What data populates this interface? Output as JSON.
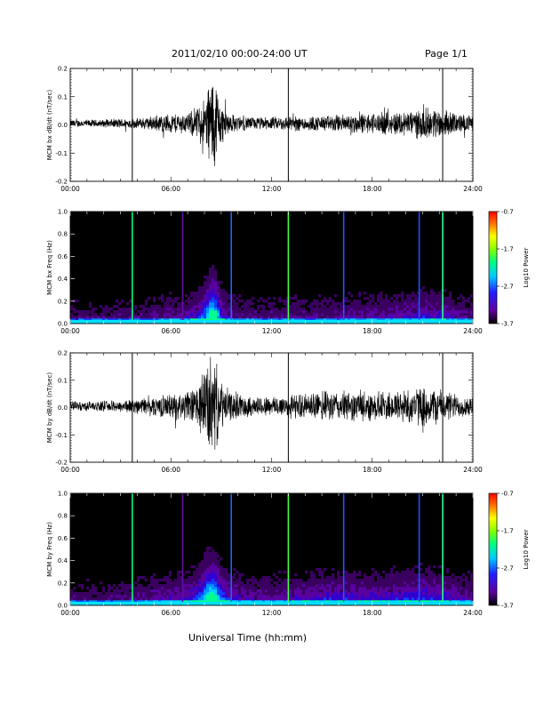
{
  "header": {
    "title": "2011/02/10  00:00-24:00 UT",
    "page": "Page 1/1",
    "xlabel": "Universal Time (hh:mm)"
  },
  "colors": {
    "trace": "#000000",
    "spectrogram_background": "#000000",
    "colorbar": [
      "#000000",
      "#6000a0",
      "#2020ff",
      "#00c8ff",
      "#00ff80",
      "#80ff00",
      "#ffff00",
      "#ff8000",
      "#ff0000"
    ]
  },
  "chart_data": [
    {
      "type": "line",
      "ylabel": "MCM bx dB/dt (nT/sec)",
      "xlim": [
        0,
        24
      ],
      "ylim": [
        -0.2,
        0.2
      ],
      "x_ticks": [
        "00:00",
        "06:00",
        "12:00",
        "18:00",
        "24:00"
      ],
      "y_ticks": [
        "-0.2",
        "-0.1",
        "0.0",
        "0.1",
        "0.2"
      ],
      "envelope": {
        "hours": [
          0,
          1,
          2,
          3,
          4,
          5,
          6,
          7,
          7.5,
          8,
          8.2,
          8.4,
          8.6,
          8.8,
          9,
          9.5,
          10,
          11,
          12,
          13,
          14,
          15,
          16,
          17,
          18,
          19,
          20,
          21,
          22,
          23,
          24
        ],
        "amplitude": [
          0.015,
          0.015,
          0.015,
          0.02,
          0.02,
          0.03,
          0.04,
          0.04,
          0.06,
          0.1,
          0.15,
          0.2,
          0.2,
          0.14,
          0.08,
          0.04,
          0.03,
          0.025,
          0.025,
          0.03,
          0.03,
          0.03,
          0.035,
          0.04,
          0.04,
          0.045,
          0.05,
          0.06,
          0.06,
          0.04,
          0.03
        ]
      },
      "spikes_hours": [
        3.7,
        13.0,
        22.2
      ]
    },
    {
      "type": "heatmap",
      "ylabel": "MCM bx Freq (Hz)",
      "xlim": [
        0,
        24
      ],
      "ylim": [
        0.0,
        1.0
      ],
      "x_ticks": [
        "00:00",
        "06:00",
        "12:00",
        "18:00",
        "24:00"
      ],
      "y_ticks": [
        "0.0",
        "0.2",
        "0.4",
        "0.6",
        "0.8",
        "1.0"
      ],
      "colorbar": {
        "label": "Log10 Power",
        "ticks": [
          "-0.7",
          "-1.7",
          "-2.7",
          "-3.7"
        ],
        "range": [
          -3.7,
          -0.7
        ]
      },
      "bright_lines_hours": [
        3.7,
        6.7,
        9.6,
        13.0,
        16.3,
        20.8,
        22.2
      ]
    },
    {
      "type": "line",
      "ylabel": "MCM by dB/dt (nT/sec)",
      "xlim": [
        0,
        24
      ],
      "ylim": [
        -0.2,
        0.2
      ],
      "x_ticks": [
        "00:00",
        "06:00",
        "12:00",
        "18:00",
        "24:00"
      ],
      "y_ticks": [
        "-0.2",
        "-0.1",
        "0.0",
        "0.1",
        "0.2"
      ],
      "envelope": {
        "hours": [
          0,
          1,
          2,
          3,
          4,
          5,
          6,
          7,
          7.5,
          8,
          8.2,
          8.4,
          8.6,
          8.8,
          9,
          9.5,
          10,
          11,
          12,
          13,
          14,
          15,
          16,
          17,
          18,
          19,
          20,
          21,
          22,
          23,
          24
        ],
        "amplitude": [
          0.02,
          0.02,
          0.02,
          0.025,
          0.03,
          0.04,
          0.05,
          0.06,
          0.08,
          0.14,
          0.2,
          0.2,
          0.2,
          0.14,
          0.1,
          0.06,
          0.05,
          0.04,
          0.04,
          0.05,
          0.05,
          0.06,
          0.06,
          0.06,
          0.06,
          0.06,
          0.07,
          0.08,
          0.07,
          0.05,
          0.04
        ]
      },
      "spikes_hours": [
        3.7,
        13.0,
        22.2
      ]
    },
    {
      "type": "heatmap",
      "ylabel": "MCM by Freq (Hz)",
      "xlim": [
        0,
        24
      ],
      "ylim": [
        0.0,
        1.0
      ],
      "x_ticks": [
        "00:00",
        "06:00",
        "12:00",
        "18:00",
        "24:00"
      ],
      "y_ticks": [
        "0.0",
        "0.2",
        "0.4",
        "0.6",
        "0.8",
        "1.0"
      ],
      "colorbar": {
        "label": "Log10 Power",
        "ticks": [
          "-0.7",
          "-1.7",
          "-2.7",
          "-3.7"
        ],
        "range": [
          -3.7,
          -0.7
        ]
      },
      "bright_lines_hours": [
        3.7,
        6.7,
        9.6,
        13.0,
        16.3,
        20.8,
        22.2
      ]
    }
  ]
}
